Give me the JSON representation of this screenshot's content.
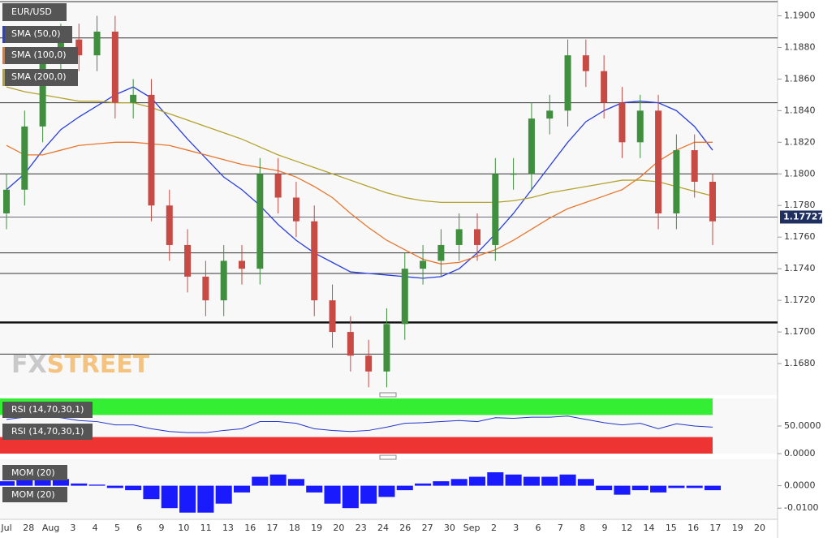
{
  "chart_data": [
    {
      "type": "candlestick",
      "title": "EUR/USD",
      "open": [
        1.1775,
        1.179,
        1.183,
        1.187,
        1.1885,
        1.1875,
        1.189,
        1.1845,
        1.185,
        1.178,
        1.1755,
        1.1735,
        1.172,
        1.1745,
        1.174,
        1.18,
        1.1785,
        1.177,
        1.172,
        1.17,
        1.1685,
        1.1675,
        1.1705,
        1.174,
        1.1745,
        1.1755,
        1.1765,
        1.1755,
        1.18,
        1.18,
        1.1835,
        1.184,
        1.1875,
        1.1865,
        1.1845,
        1.182,
        1.184,
        1.1775,
        1.1815,
        1.1795
      ],
      "high": [
        1.18,
        1.184,
        1.188,
        1.1895,
        1.1895,
        1.19,
        1.19,
        1.186,
        1.186,
        1.179,
        1.1765,
        1.1745,
        1.1755,
        1.1755,
        1.181,
        1.181,
        1.1795,
        1.178,
        1.173,
        1.171,
        1.1695,
        1.1715,
        1.175,
        1.1755,
        1.1765,
        1.1775,
        1.1775,
        1.181,
        1.181,
        1.1845,
        1.185,
        1.1885,
        1.1885,
        1.1875,
        1.1855,
        1.185,
        1.185,
        1.1825,
        1.1825,
        1.18
      ],
      "low": [
        1.1765,
        1.178,
        1.182,
        1.186,
        1.1865,
        1.1865,
        1.1835,
        1.1835,
        1.177,
        1.1745,
        1.1725,
        1.171,
        1.171,
        1.173,
        1.173,
        1.1775,
        1.176,
        1.171,
        1.169,
        1.1675,
        1.1665,
        1.1665,
        1.1695,
        1.173,
        1.1735,
        1.1745,
        1.1745,
        1.1745,
        1.179,
        1.179,
        1.1825,
        1.183,
        1.1855,
        1.1835,
        1.181,
        1.181,
        1.1765,
        1.1765,
        1.1785,
        1.1755
      ],
      "close": [
        1.179,
        1.183,
        1.187,
        1.1885,
        1.1875,
        1.189,
        1.1845,
        1.185,
        1.178,
        1.1755,
        1.1735,
        1.172,
        1.1745,
        1.174,
        1.18,
        1.1785,
        1.177,
        1.172,
        1.17,
        1.1685,
        1.1675,
        1.1705,
        1.174,
        1.1745,
        1.1755,
        1.1765,
        1.1755,
        1.18,
        1.18,
        1.1835,
        1.184,
        1.1875,
        1.1865,
        1.1845,
        1.182,
        1.184,
        1.1775,
        1.1815,
        1.1795,
        1.177
      ],
      "up_color": "#3f8f3f",
      "down_color": "#c84a45",
      "series": [
        {
          "name": "SMA (50,0)",
          "color": "#2a3fe0",
          "values": [
            1.179,
            1.18,
            1.1815,
            1.1828,
            1.1836,
            1.1843,
            1.185,
            1.1855,
            1.1848,
            1.1835,
            1.1822,
            1.181,
            1.1798,
            1.179,
            1.178,
            1.1768,
            1.1758,
            1.175,
            1.1744,
            1.1738,
            1.1737,
            1.1736,
            1.1735,
            1.1734,
            1.1735,
            1.174,
            1.175,
            1.1762,
            1.1775,
            1.179,
            1.1805,
            1.182,
            1.1833,
            1.184,
            1.1845,
            1.1846,
            1.1845,
            1.184,
            1.183,
            1.1815
          ]
        },
        {
          "name": "SMA (100,0)",
          "color": "#e8772e",
          "values": [
            1.1818,
            1.1812,
            1.1812,
            1.1815,
            1.1818,
            1.1819,
            1.182,
            1.182,
            1.1819,
            1.1818,
            1.1815,
            1.1812,
            1.1809,
            1.1806,
            1.1804,
            1.1802,
            1.1798,
            1.1792,
            1.1785,
            1.1775,
            1.1766,
            1.1758,
            1.1752,
            1.1746,
            1.1743,
            1.1744,
            1.1748,
            1.1752,
            1.1758,
            1.1765,
            1.1772,
            1.1778,
            1.1782,
            1.1786,
            1.179,
            1.1798,
            1.1808,
            1.1815,
            1.182,
            1.182
          ]
        },
        {
          "name": "SMA (200,0)",
          "color": "#b3a22c",
          "values": [
            1.1855,
            1.1852,
            1.185,
            1.1848,
            1.1846,
            1.1846,
            1.1845,
            1.1845,
            1.1842,
            1.1838,
            1.1834,
            1.183,
            1.1826,
            1.1822,
            1.1817,
            1.1812,
            1.1808,
            1.1804,
            1.18,
            1.1796,
            1.1792,
            1.1788,
            1.1785,
            1.1783,
            1.1782,
            1.1782,
            1.1782,
            1.1782,
            1.1783,
            1.1785,
            1.1788,
            1.179,
            1.1792,
            1.1794,
            1.1796,
            1.1796,
            1.1795,
            1.1792,
            1.1789,
            1.1786
          ]
        }
      ],
      "levels": [
        1.1909,
        1.1886,
        1.1845,
        1.18,
        1.175,
        1.1737,
        1.1686
      ],
      "major_level": 1.1706,
      "last_price": 1.17727,
      "ylim": [
        1.166,
        1.191
      ],
      "yticks": [
        {
          "value": 1.168,
          "label": "1.1680"
        },
        {
          "value": 1.17,
          "label": "1.1700"
        },
        {
          "value": 1.172,
          "label": "1.1720"
        },
        {
          "value": 1.174,
          "label": "1.1740"
        },
        {
          "value": 1.176,
          "label": "1.1760"
        },
        {
          "value": 1.178,
          "label": "1.1780"
        },
        {
          "value": 1.18,
          "label": "1.1800"
        },
        {
          "value": 1.182,
          "label": "1.1820"
        },
        {
          "value": 1.184,
          "label": "1.1840"
        },
        {
          "value": 1.186,
          "label": "1.1860"
        },
        {
          "value": 1.188,
          "label": "1.1880"
        },
        {
          "value": 1.19,
          "label": "1.1900"
        }
      ],
      "watermark": [
        "FX",
        "STREET"
      ],
      "x_labels": [
        "Jul",
        "28",
        "Aug",
        "3",
        "4",
        "5",
        "6",
        "9",
        "10",
        "11",
        "13",
        "16",
        "17",
        "18",
        "19",
        "20",
        "23",
        "24",
        "26",
        "27",
        "30",
        "Sep",
        "2",
        "3",
        "6",
        "7",
        "8",
        "9",
        "12",
        "14",
        "15",
        "16",
        "17",
        "19",
        "20"
      ]
    },
    {
      "type": "line",
      "series": [
        {
          "name": "RSI (14,70,30,1)",
          "color": "#2233cc",
          "values": [
            62,
            66,
            68,
            65,
            60,
            58,
            52,
            52,
            45,
            40,
            38,
            38,
            42,
            45,
            58,
            58,
            55,
            45,
            42,
            40,
            42,
            48,
            55,
            56,
            58,
            60,
            58,
            65,
            64,
            66,
            66,
            68,
            62,
            56,
            52,
            55,
            45,
            54,
            50,
            48
          ]
        }
      ],
      "overbought": 70,
      "oversold": 30,
      "overbought_color": "#33ee33",
      "oversold_color": "#ee3333",
      "ylim": [
        0,
        100
      ],
      "yticks": [
        {
          "value": 50,
          "label": "50.0000"
        },
        {
          "value": 0,
          "label": "0.0000"
        }
      ]
    },
    {
      "type": "bar",
      "series": [
        {
          "name": "MOM (20)",
          "color": "#1a1aff",
          "values": [
            0.002,
            0.003,
            0.004,
            0.003,
            0.001,
            0.0005,
            -0.001,
            -0.002,
            -0.006,
            -0.01,
            -0.012,
            -0.012,
            -0.008,
            -0.003,
            0.004,
            0.005,
            0.003,
            -0.003,
            -0.008,
            -0.01,
            -0.008,
            -0.005,
            -0.002,
            0.001,
            0.002,
            0.003,
            0.004,
            0.006,
            0.005,
            0.004,
            0.004,
            0.005,
            0.003,
            -0.002,
            -0.004,
            -0.002,
            -0.003,
            -0.001,
            -0.001,
            -0.002
          ]
        }
      ],
      "ylim": [
        -0.015,
        0.0118
      ],
      "yticks": [
        {
          "value": 0,
          "label": "0.0000"
        },
        {
          "value": -0.01,
          "label": "-0.0100"
        }
      ]
    }
  ]
}
